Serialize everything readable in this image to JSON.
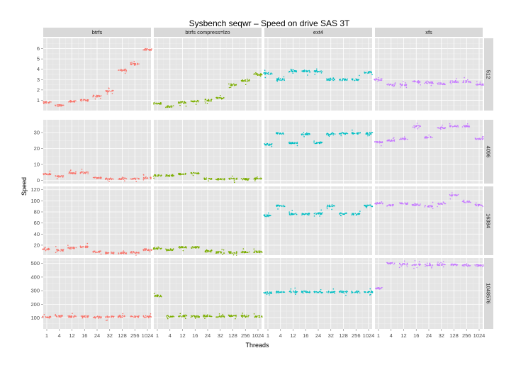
{
  "chart_data": {
    "type": "scatter",
    "title": "Sysbench seqwr – Speed on drive SAS 3T",
    "xlabel": "Threads",
    "ylabel": "Speed",
    "x_categories": [
      "1",
      "4",
      "12",
      "16",
      "24",
      "32",
      "128",
      "256",
      "1024"
    ],
    "x_tick_labels": [
      "1",
      "4",
      "12",
      "16",
      "24",
      "32",
      "128",
      "256",
      "1024"
    ],
    "columns": [
      "btrfs",
      "btrfs compress=lzo",
      "ext4",
      "xfs"
    ],
    "rows": [
      "512",
      "4096",
      "16384",
      "1048576"
    ],
    "colors": {
      "btrfs": "#f8766d",
      "btrfs compress=lzo": "#7cae00",
      "ext4": "#00bfc4",
      "xfs": "#c77cff"
    },
    "row_axes": [
      {
        "row": "512",
        "ylim": [
          0,
          7
        ],
        "yticks": [
          1,
          2,
          3,
          4,
          5,
          6
        ]
      },
      {
        "row": "4096",
        "ylim": [
          -2,
          38
        ],
        "yticks": [
          0,
          10,
          20,
          30
        ]
      },
      {
        "row": "16384",
        "ylim": [
          2,
          126
        ],
        "yticks": [
          20,
          40,
          60,
          80,
          100,
          120
        ]
      },
      {
        "row": "1048576",
        "ylim": [
          20,
          540
        ],
        "yticks": [
          100,
          200,
          300,
          400,
          500
        ]
      }
    ],
    "series": [
      {
        "filesystem": "btrfs",
        "block_size": "512",
        "median_speed_by_threads": [
          0.8,
          0.5,
          0.9,
          1.0,
          1.4,
          1.9,
          3.9,
          4.5,
          5.9
        ]
      },
      {
        "filesystem": "btrfs",
        "block_size": "4096",
        "median_speed_by_threads": [
          4.0,
          2.5,
          4.5,
          4.8,
          1.5,
          1.0,
          1.0,
          1.0,
          1.5
        ]
      },
      {
        "filesystem": "btrfs",
        "block_size": "16384",
        "median_speed_by_threads": [
          13,
          11,
          15,
          17,
          8,
          6,
          6,
          7,
          12
        ]
      },
      {
        "filesystem": "btrfs",
        "block_size": "1048576",
        "median_speed_by_threads": [
          105,
          112,
          110,
          110,
          105,
          108,
          110,
          110,
          110
        ]
      },
      {
        "filesystem": "btrfs compress=lzo",
        "block_size": "512",
        "median_speed_by_threads": [
          0.7,
          0.4,
          0.8,
          0.9,
          1.0,
          1.2,
          2.5,
          2.9,
          3.5
        ]
      },
      {
        "filesystem": "btrfs compress=lzo",
        "block_size": "4096",
        "median_speed_by_threads": [
          3.0,
          3.0,
          4.0,
          4.5,
          1.0,
          0.8,
          1.0,
          0.8,
          1.0
        ]
      },
      {
        "filesystem": "btrfs compress=lzo",
        "block_size": "16384",
        "median_speed_by_threads": [
          14,
          12,
          16,
          16,
          9,
          7,
          7,
          8,
          8
        ]
      },
      {
        "filesystem": "btrfs compress=lzo",
        "block_size": "1048576",
        "median_speed_by_threads": [
          262,
          112,
          115,
          110,
          115,
          110,
          115,
          115,
          110
        ]
      },
      {
        "filesystem": "ext4",
        "block_size": "512",
        "median_speed_by_threads": [
          3.6,
          3.0,
          3.8,
          3.8,
          3.8,
          3.0,
          3.0,
          3.0,
          3.7
        ]
      },
      {
        "filesystem": "ext4",
        "block_size": "4096",
        "median_speed_by_threads": [
          22.5,
          29.5,
          23.5,
          29.0,
          23.5,
          29.0,
          29.5,
          29.5,
          29.5
        ]
      },
      {
        "filesystem": "ext4",
        "block_size": "16384",
        "median_speed_by_threads": [
          73,
          91,
          76,
          76,
          77,
          91,
          77,
          76,
          91
        ]
      },
      {
        "filesystem": "ext4",
        "block_size": "1048576",
        "median_speed_by_threads": [
          285,
          290,
          292,
          292,
          290,
          292,
          292,
          290,
          292
        ]
      },
      {
        "filesystem": "xfs",
        "block_size": "512",
        "median_speed_by_threads": [
          3.0,
          2.5,
          2.5,
          2.8,
          2.7,
          2.6,
          2.8,
          2.8,
          2.5
        ]
      },
      {
        "filesystem": "xfs",
        "block_size": "4096",
        "median_speed_by_threads": [
          24,
          25,
          26,
          34,
          27,
          33,
          34,
          34,
          26
        ]
      },
      {
        "filesystem": "xfs",
        "block_size": "16384",
        "median_speed_by_threads": [
          96,
          92,
          95,
          93,
          90,
          95,
          110,
          98,
          92
        ]
      },
      {
        "filesystem": "xfs",
        "block_size": "1048576",
        "median_speed_by_threads": [
          318,
          500,
          495,
          490,
          488,
          492,
          490,
          485,
          485
        ]
      }
    ]
  }
}
